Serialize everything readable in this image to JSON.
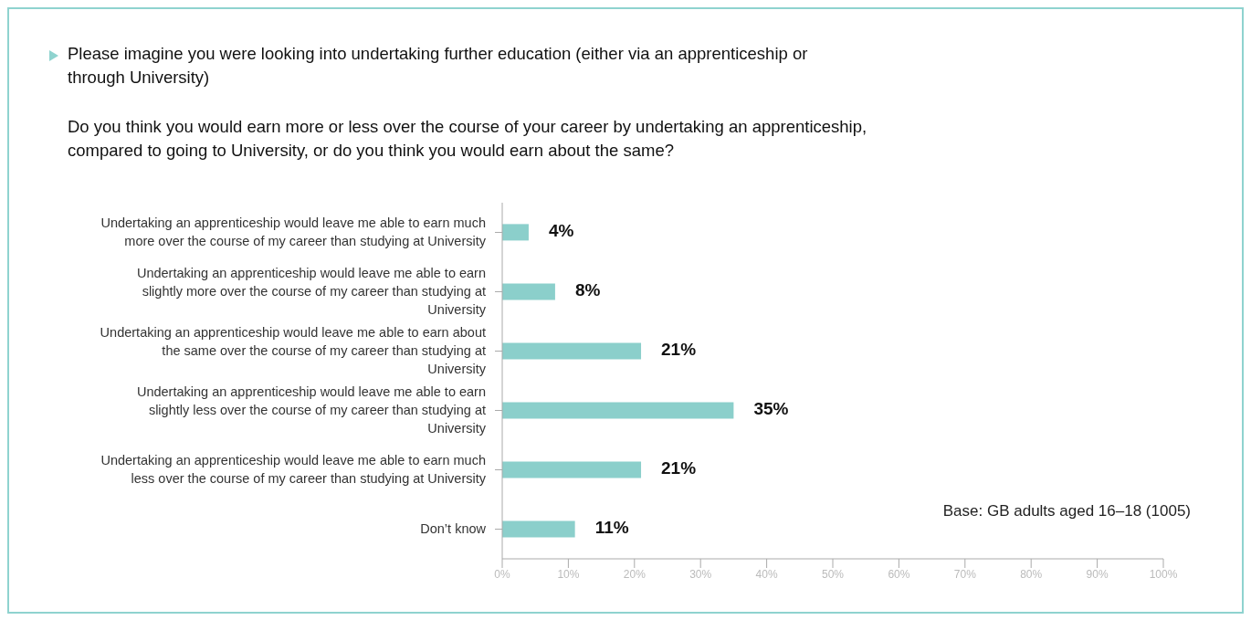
{
  "chart_data": {
    "type": "bar",
    "orientation": "horizontal",
    "title": "Please imagine you were looking into undertaking further education (either via an apprenticeship or through University)",
    "subtitle": "Do you think you would earn more or less over the course of your career by undertaking an apprenticeship, compared to going to University, or do you think you would earn about the same?",
    "categories": [
      "Undertaking an apprenticeship would leave me able to earn much more over the course of my career than studying at University",
      "Undertaking an apprenticeship would leave me able to earn slightly more over the course of my career than studying at University",
      "Undertaking an apprenticeship would leave me able to earn about the same over the course of my career than studying at University",
      "Undertaking an apprenticeship would leave me able to earn slightly less over the course of my career than studying at University",
      "Undertaking an apprenticeship would leave me able to earn much less over the course of my career than studying at University",
      "Don’t know"
    ],
    "values": [
      4,
      8,
      21,
      35,
      21,
      11
    ],
    "value_labels": [
      "4%",
      "8%",
      "21%",
      "35%",
      "21%",
      "11%"
    ],
    "color": "#8bcfcb",
    "xlim": [
      0,
      100
    ],
    "xticks": [
      {
        "value": 0,
        "label": "0%"
      },
      {
        "value": 10,
        "label": "10%"
      },
      {
        "value": 20,
        "label": "20%"
      },
      {
        "value": 30,
        "label": "30%"
      },
      {
        "value": 40,
        "label": "40%"
      },
      {
        "value": 50,
        "label": "50%"
      },
      {
        "value": 60,
        "label": "60%"
      },
      {
        "value": 70,
        "label": "70%"
      },
      {
        "value": 80,
        "label": "80%"
      },
      {
        "value": 90,
        "label": "90%"
      },
      {
        "value": 100,
        "label": "100%"
      }
    ],
    "annotations": [
      "Base: GB adults aged 16–18 (1005)"
    ]
  }
}
